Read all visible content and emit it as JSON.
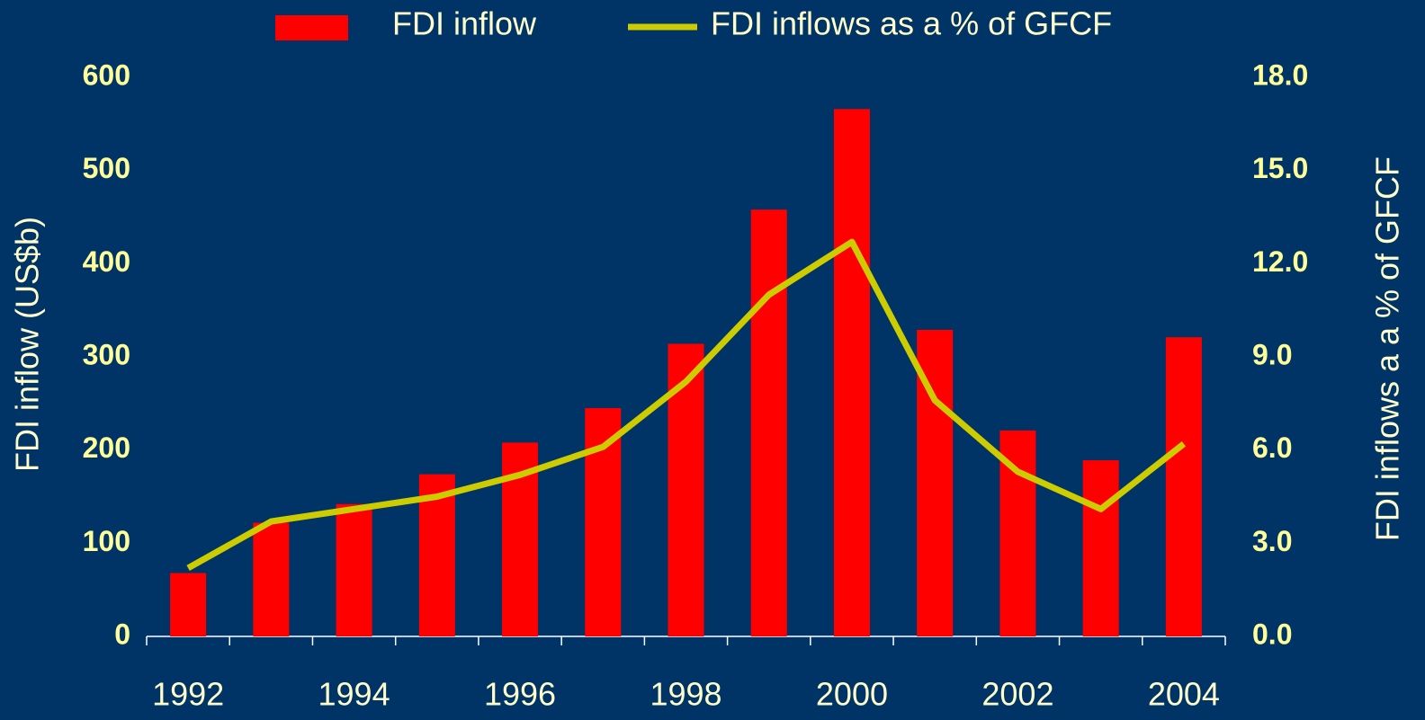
{
  "chart_data": {
    "type": "bar_line",
    "categories": [
      "1992",
      null,
      "1994",
      null,
      "1996",
      null,
      "1998",
      null,
      "2000",
      null,
      "2002",
      null,
      "2004"
    ],
    "series": [
      {
        "name": "FDI inflow",
        "color": "#ff0000",
        "values": [
          68,
          122,
          142,
          174,
          208,
          245,
          314,
          458,
          566,
          329,
          221,
          189,
          321
        ]
      },
      {
        "name": "FDI inflows as a % of GFCF",
        "color": "#cccc00",
        "axis": "y2",
        "values": [
          2.2,
          3.7,
          4.1,
          4.5,
          5.2,
          6.1,
          8.2,
          11.0,
          12.7,
          7.6,
          5.3,
          4.1,
          6.2
        ]
      }
    ],
    "ylabel": "FDI inflow (US$b)",
    "y2label": "FDI inflows a a % of GFCF",
    "ylim": [
      0,
      600
    ],
    "yticks": [
      0,
      100,
      200,
      300,
      400,
      500,
      600
    ],
    "y2lim": [
      0,
      18
    ],
    "y2ticks": [
      {
        "value": 0,
        "label": "0.0"
      },
      {
        "value": 3,
        "label": "3.0"
      },
      {
        "value": 6,
        "label": "6.0"
      },
      {
        "value": 9,
        "label": "9.0"
      },
      {
        "value": 12,
        "label": "12.0"
      },
      {
        "value": 15,
        "label": "15.0"
      },
      {
        "value": 18,
        "label": "18.0"
      }
    ],
    "legend": "top"
  }
}
